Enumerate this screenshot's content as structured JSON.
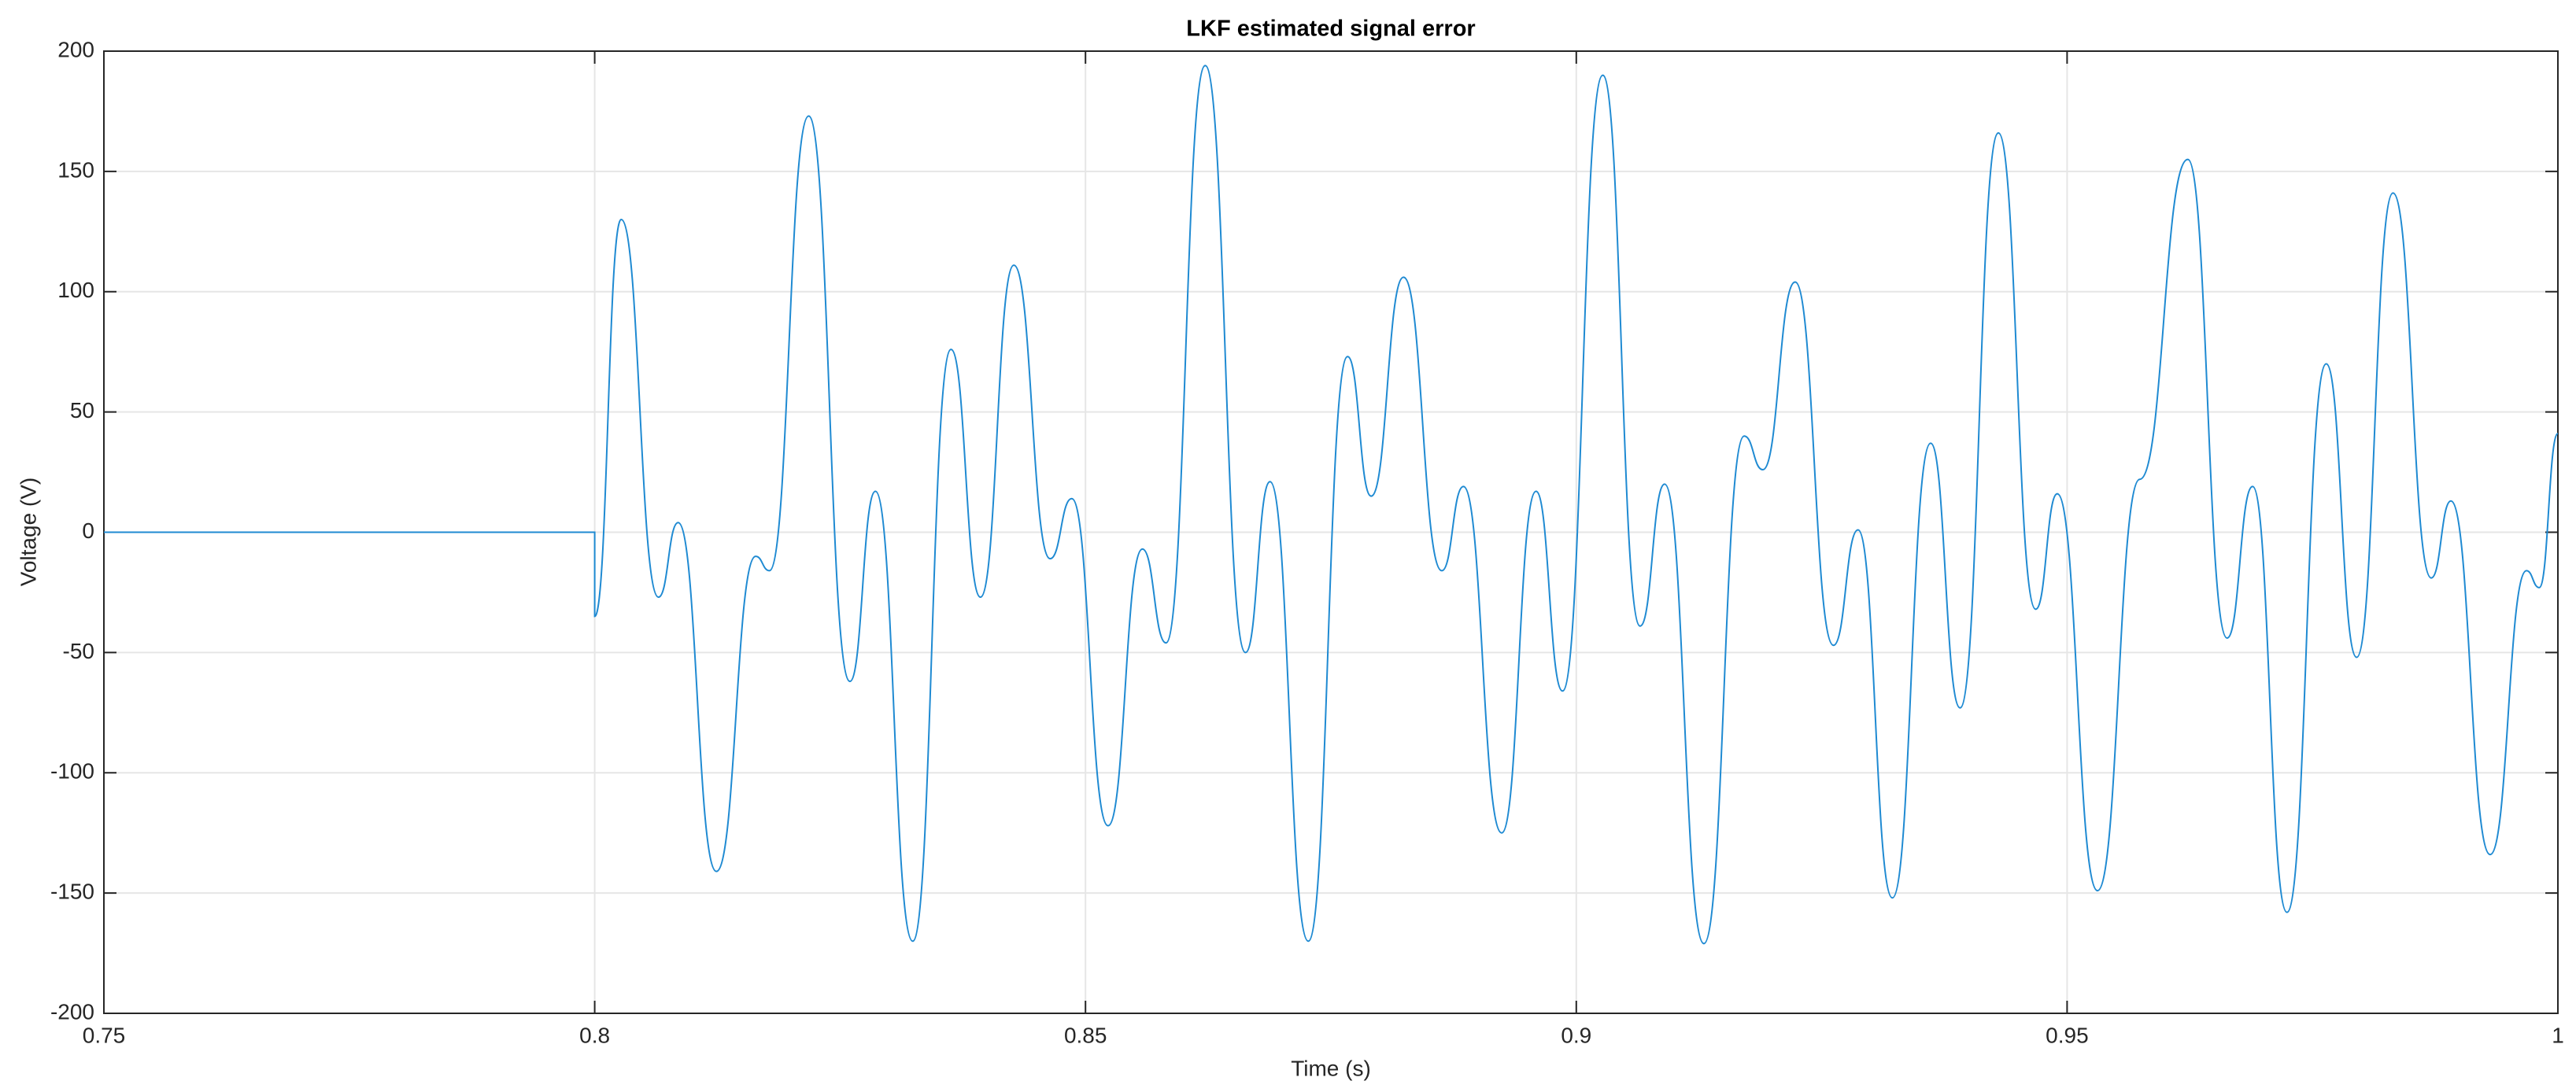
{
  "chart_data": {
    "type": "line",
    "title": "LKF estimated signal error",
    "xlabel": "Time (s)",
    "ylabel": "Voltage (V)",
    "x": [
      0.75,
      0.8,
      0.8,
      0.8027,
      0.8065,
      0.8085,
      0.8124,
      0.8164,
      0.8178,
      0.8218,
      0.826,
      0.8286,
      0.8324,
      0.8363,
      0.8393,
      0.8427,
      0.8464,
      0.8486,
      0.8523,
      0.8558,
      0.8582,
      0.8622,
      0.8663,
      0.8688,
      0.8727,
      0.8767,
      0.8791,
      0.8824,
      0.8863,
      0.8885,
      0.8924,
      0.8959,
      0.8986,
      0.9027,
      0.9065,
      0.909,
      0.913,
      0.9171,
      0.919,
      0.9223,
      0.9262,
      0.9287,
      0.9322,
      0.9361,
      0.9391,
      0.943,
      0.9468,
      0.949,
      0.9531,
      0.9574,
      0.9623,
      0.9663,
      0.9689,
      0.9724,
      0.9764,
      0.9795,
      0.9832,
      0.9871,
      0.9891,
      0.9931,
      0.9968,
      0.9981,
      1.0
    ],
    "values": [
      0,
      0,
      -35,
      130,
      -27,
      4,
      -141,
      -10,
      -16,
      173,
      -62,
      17,
      -170,
      76,
      -27,
      111,
      -11,
      14,
      -122,
      -7,
      -46,
      194,
      -50,
      21,
      -170,
      73,
      15,
      106,
      -16,
      19,
      -125,
      17,
      -66,
      190,
      -39,
      20,
      -171,
      40,
      26,
      104,
      -47,
      1,
      -152,
      37,
      -73,
      166,
      -32,
      16,
      -149,
      22,
      155,
      -44,
      19,
      -158,
      70,
      -52,
      141,
      -19,
      13,
      -134,
      -16,
      -23,
      41
    ],
    "color": "#1f8ad2",
    "xlim": [
      0.75,
      1
    ],
    "xticks": [
      0.75,
      0.8,
      0.85,
      0.9,
      0.95,
      1
    ],
    "ylim": [
      -200,
      200
    ],
    "yticks": [
      -200,
      -150,
      -100,
      -50,
      0,
      50,
      100,
      150,
      200
    ],
    "grid": true
  }
}
